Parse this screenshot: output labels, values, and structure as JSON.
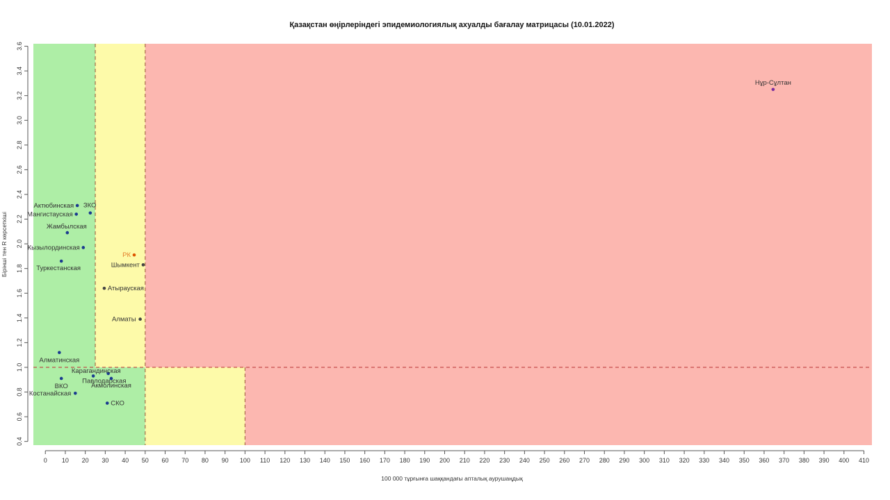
{
  "chart_data": {
    "type": "scatter",
    "title": "Қазақстан өңірлеріндегі эпидемиологиялық ахуалды бағалау матрицасы  (10.01.2022)",
    "xlabel": "100 000 тұрғынға шаққандағы апталық аурушаңдық",
    "ylabel": "Бірінші тен R көрсеткіші",
    "xlim": [
      -6,
      414
    ],
    "ylim": [
      0.37,
      3.62
    ],
    "x_ticks": [
      0,
      10,
      20,
      30,
      40,
      50,
      60,
      70,
      80,
      90,
      100,
      110,
      120,
      130,
      140,
      150,
      160,
      170,
      180,
      190,
      200,
      210,
      220,
      230,
      240,
      250,
      260,
      270,
      280,
      290,
      300,
      310,
      320,
      330,
      340,
      350,
      360,
      370,
      380,
      390,
      400,
      410
    ],
    "y_ticks": [
      0.4,
      0.6,
      0.8,
      1.0,
      1.2,
      1.4,
      1.6,
      1.8,
      2.0,
      2.2,
      2.4,
      2.6,
      2.8,
      3.0,
      3.2,
      3.4,
      3.6
    ],
    "grid": false,
    "zones": [
      {
        "x0": -6,
        "x1": 25,
        "y0": 1.0,
        "y1": 3.62,
        "color": "#aeeea6"
      },
      {
        "x0": 25,
        "x1": 50,
        "y0": 1.0,
        "y1": 3.62,
        "color": "#fdfaa9"
      },
      {
        "x0": 50,
        "x1": 414,
        "y0": 1.0,
        "y1": 3.62,
        "color": "#fcb7b0"
      },
      {
        "x0": -6,
        "x1": 50,
        "y0": 0.37,
        "y1": 1.0,
        "color": "#aeeea6"
      },
      {
        "x0": 50,
        "x1": 100,
        "y0": 0.37,
        "y1": 1.0,
        "color": "#fdfaa9"
      },
      {
        "x0": 100,
        "x1": 414,
        "y0": 0.37,
        "y1": 1.0,
        "color": "#fcb7b0"
      }
    ],
    "threshold_lines": [
      {
        "orientation": "vertical",
        "x": 25,
        "y0": 1.0,
        "y1": 3.62
      },
      {
        "orientation": "vertical",
        "x": 50,
        "y0": 0.37,
        "y1": 3.62
      },
      {
        "orientation": "vertical",
        "x": 100,
        "y0": 0.37,
        "y1": 1.0
      },
      {
        "orientation": "horizontal",
        "y": 1.0,
        "x0": -6,
        "x1": 414
      }
    ],
    "points": [
      {
        "name": "Нұр-Сұлтан",
        "x": 364.5,
        "y": 3.25,
        "color": "#7b2d9e",
        "label_color": "#333333"
      },
      {
        "name": "Актюбинская",
        "x": 16,
        "y": 2.31,
        "color": "#1a3a8f",
        "label_color": "#333333"
      },
      {
        "name": "ЗКО",
        "x": 22.5,
        "y": 2.25,
        "color": "#1a3a8f",
        "label_color": "#333333"
      },
      {
        "name": "Мангистауская",
        "x": 15.5,
        "y": 2.24,
        "color": "#1a3a8f",
        "label_color": "#333333"
      },
      {
        "name": "Жамбылская",
        "x": 11,
        "y": 2.09,
        "color": "#1a3a8f",
        "label_color": "#333333"
      },
      {
        "name": "Кызылординская",
        "x": 19,
        "y": 1.97,
        "color": "#1a3a8f",
        "label_color": "#333333"
      },
      {
        "name": "Туркестанская",
        "x": 8,
        "y": 1.86,
        "color": "#1a3a8f",
        "label_color": "#333333"
      },
      {
        "name": "РК",
        "x": 44.5,
        "y": 1.91,
        "color": "#dd5500",
        "label_color": "#e37d2a"
      },
      {
        "name": "Шымкент",
        "x": 49,
        "y": 1.83,
        "color": "#444444",
        "label_color": "#333333"
      },
      {
        "name": "Атырауская",
        "x": 29.5,
        "y": 1.64,
        "color": "#444444",
        "label_color": "#333333"
      },
      {
        "name": "Алматы",
        "x": 47.5,
        "y": 1.39,
        "color": "#444444",
        "label_color": "#333333"
      },
      {
        "name": "Алматинская",
        "x": 7,
        "y": 1.12,
        "color": "#1a3a8f",
        "label_color": "#333333"
      },
      {
        "name": "Карагандинская",
        "x": 31.5,
        "y": 0.95,
        "color": "#1a3a8f",
        "label_color": "#333333"
      },
      {
        "name": "Павлодарская",
        "x": 24,
        "y": 0.93,
        "color": "#1a3a8f",
        "label_color": "#333333"
      },
      {
        "name": "Акмолинская",
        "x": 33,
        "y": 0.91,
        "color": "#1a3a8f",
        "label_color": "#333333"
      },
      {
        "name": "ВКО",
        "x": 8,
        "y": 0.91,
        "color": "#1a3a8f",
        "label_color": "#333333"
      },
      {
        "name": "Костанайская",
        "x": 15,
        "y": 0.79,
        "color": "#1a3a8f",
        "label_color": "#333333"
      },
      {
        "name": "СКО",
        "x": 31,
        "y": 0.71,
        "color": "#1a3a8f",
        "label_color": "#333333"
      }
    ]
  }
}
